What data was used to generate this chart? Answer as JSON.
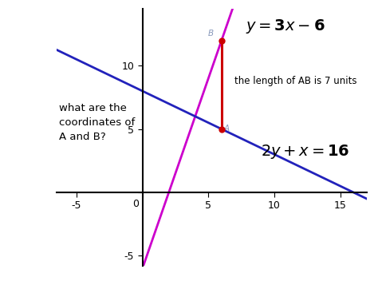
{
  "bg_color": "#ffffff",
  "xlim": [
    -6.5,
    17
  ],
  "ylim": [
    -5.8,
    14.5
  ],
  "x_ticks": [
    -5,
    0,
    5,
    10,
    15
  ],
  "y_ticks": [
    -5,
    0,
    5,
    10
  ],
  "line1_color": "#cc00cc",
  "line1_slope": 3,
  "line1_intercept": -6,
  "line2_color": "#2222bb",
  "line2_slope": -0.5,
  "line2_intercept": 8,
  "segment_color": "#cc0000",
  "point_A": [
    6,
    5
  ],
  "point_B": [
    6,
    12
  ],
  "point_color": "#cc0000",
  "point_label_color": "#8899bb",
  "point_size": 25,
  "question_text": "what are the\ncoordinates of\nA and B?",
  "question_x": -6.3,
  "question_y": 5.5,
  "ab_text": "the length of AB is 7 units",
  "ab_x": 7.0,
  "ab_y": 8.8,
  "eq1_x": 7.8,
  "eq1_y": 13.8,
  "eq2_x": 9.0,
  "eq2_y": 3.2,
  "tick_label_fontsize": 9,
  "spine_color": "#000000",
  "spine_linewidth": 1.5,
  "line_linewidth": 2.0,
  "segment_linewidth": 2.2
}
